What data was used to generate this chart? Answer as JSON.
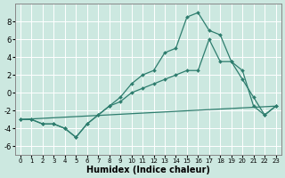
{
  "xlabel": "Humidex (Indice chaleur)",
  "bg_color": "#cce8e0",
  "grid_color": "#ffffff",
  "line_color": "#2e7d6e",
  "xlim": [
    -0.5,
    23.5
  ],
  "ylim": [
    -7,
    10
  ],
  "xticks": [
    0,
    1,
    2,
    3,
    4,
    5,
    6,
    7,
    8,
    9,
    10,
    11,
    12,
    13,
    14,
    15,
    16,
    17,
    18,
    19,
    20,
    21,
    22,
    23
  ],
  "yticks": [
    -6,
    -4,
    -2,
    0,
    2,
    4,
    6,
    8
  ],
  "series_flat": {
    "x": [
      0,
      23
    ],
    "y": [
      -3,
      -1.5
    ]
  },
  "series_mid": {
    "x": [
      0,
      1,
      2,
      3,
      4,
      5,
      6,
      7,
      8,
      9,
      10,
      11,
      12,
      13,
      14,
      15,
      16,
      17,
      18,
      19,
      20,
      21,
      22,
      23
    ],
    "y": [
      -3,
      -3,
      -3.5,
      -3.5,
      -4,
      -5,
      -3.5,
      -2.5,
      -1.5,
      -1,
      0,
      0.5,
      1,
      1.5,
      2,
      2.5,
      2.5,
      6,
      3.5,
      3.5,
      2.5,
      -1.5,
      -2.5,
      -1.5
    ]
  },
  "series_top": {
    "x": [
      0,
      1,
      2,
      3,
      4,
      5,
      6,
      7,
      8,
      9,
      10,
      11,
      12,
      13,
      14,
      15,
      16,
      17,
      18,
      19,
      20,
      21,
      22,
      23
    ],
    "y": [
      -3,
      -3,
      -3.5,
      -3.5,
      -4,
      -5,
      -3.5,
      -2.5,
      -1.5,
      -0.5,
      1,
      2,
      2.5,
      4.5,
      5,
      8.5,
      9,
      7,
      6.5,
      3.5,
      1.5,
      -0.5,
      -2.5,
      -1.5
    ]
  }
}
